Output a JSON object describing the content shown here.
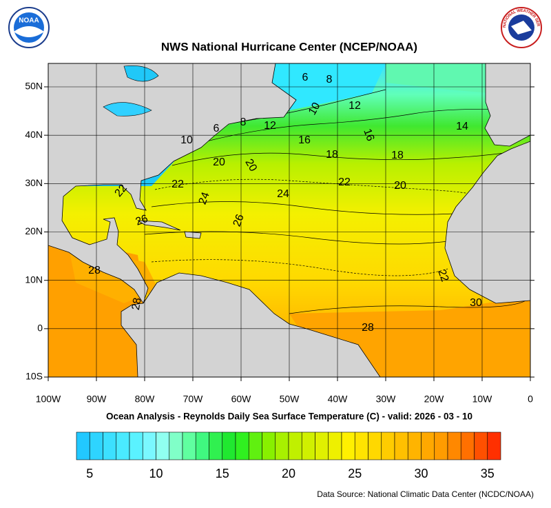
{
  "header": {
    "title": "NWS National Hurricane Center (NCEP/NOAA)",
    "logo_left": "NOAA",
    "logo_right": "NATIONAL WEATHER SERVICE"
  },
  "map": {
    "lat_labels": [
      "50N",
      "40N",
      "30N",
      "20N",
      "10N",
      "0",
      "10S"
    ],
    "lon_labels": [
      "100W",
      "90W",
      "80W",
      "70W",
      "60W",
      "50W",
      "40W",
      "30W",
      "20W",
      "10W",
      "0"
    ],
    "contour_labels": [
      6,
      8,
      10,
      12,
      14,
      6,
      8,
      12,
      10,
      16,
      16,
      18,
      18,
      20,
      20,
      22,
      22,
      20,
      24,
      24,
      22,
      26,
      26,
      28,
      28,
      22,
      30,
      28
    ],
    "caption": "Ocean Analysis - Reynolds Daily Sea Surface Temperature (C) - valid: 2026 - 03 - 10"
  },
  "colorbar": {
    "range": [
      4,
      36
    ],
    "ticks": [
      5,
      10,
      15,
      20,
      25,
      30,
      35
    ],
    "colors": [
      "#22c8ff",
      "#2ed4ff",
      "#3ce0ff",
      "#4aeaff",
      "#5af2ff",
      "#7af8ff",
      "#90fff0",
      "#80ffc8",
      "#60ffa0",
      "#40f880",
      "#30f050",
      "#20e830",
      "#30f020",
      "#60f010",
      "#88f000",
      "#a8f000",
      "#c0f000",
      "#d0f000",
      "#e0f000",
      "#eef000",
      "#fff000",
      "#ffe400",
      "#ffd800",
      "#ffcc00",
      "#ffc000",
      "#ffb400",
      "#ffa800",
      "#ff9c00",
      "#ff8800",
      "#ff7000",
      "#ff5000",
      "#ff3000"
    ]
  },
  "footer": {
    "source": "Data Source: National Climatic Data Center (NCDC/NOAA)"
  }
}
